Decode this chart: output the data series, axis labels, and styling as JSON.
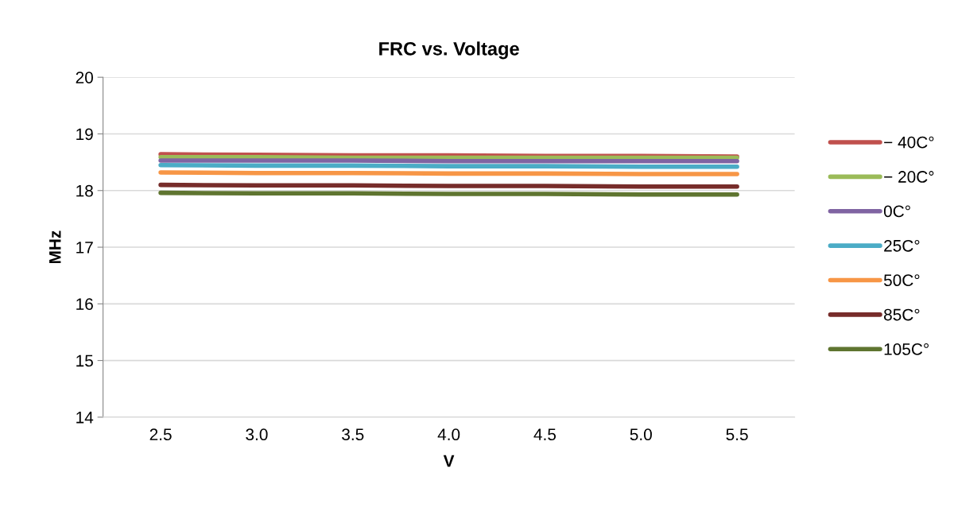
{
  "chart_data": {
    "type": "line",
    "title": "FRC vs. Voltage",
    "xlabel": "V",
    "ylabel": "MHz",
    "categories": [
      "2.5",
      "3.0",
      "3.5",
      "4.0",
      "4.5",
      "5.0",
      "5.5"
    ],
    "ylim": [
      14,
      20
    ],
    "yticks": [
      14,
      15,
      16,
      17,
      18,
      19,
      20
    ],
    "grid": "y",
    "legend": "right",
    "marker": "none",
    "line_style": "solid",
    "series": [
      {
        "name": "− 40C°",
        "color": "#c0504d",
        "values": [
          18.64,
          18.63,
          18.62,
          18.62,
          18.61,
          18.61,
          18.6
        ]
      },
      {
        "name": "− 20C°",
        "color": "#9bbb59",
        "values": [
          18.59,
          18.59,
          18.58,
          18.58,
          18.58,
          18.58,
          18.58
        ]
      },
      {
        "name": "0C°",
        "color": "#8064a2",
        "values": [
          18.53,
          18.53,
          18.53,
          18.52,
          18.52,
          18.52,
          18.52
        ]
      },
      {
        "name": "25C°",
        "color": "#4bacc6",
        "values": [
          18.45,
          18.44,
          18.44,
          18.43,
          18.43,
          18.42,
          18.42
        ]
      },
      {
        "name": "50C°",
        "color": "#f79646",
        "values": [
          18.32,
          18.31,
          18.31,
          18.3,
          18.3,
          18.29,
          18.29
        ]
      },
      {
        "name": "85C°",
        "color": "#772c2a",
        "values": [
          18.1,
          18.09,
          18.09,
          18.08,
          18.08,
          18.07,
          18.07
        ]
      },
      {
        "name": "105C°",
        "color": "#5f7530",
        "values": [
          17.96,
          17.95,
          17.95,
          17.94,
          17.94,
          17.93,
          17.93
        ]
      }
    ]
  }
}
